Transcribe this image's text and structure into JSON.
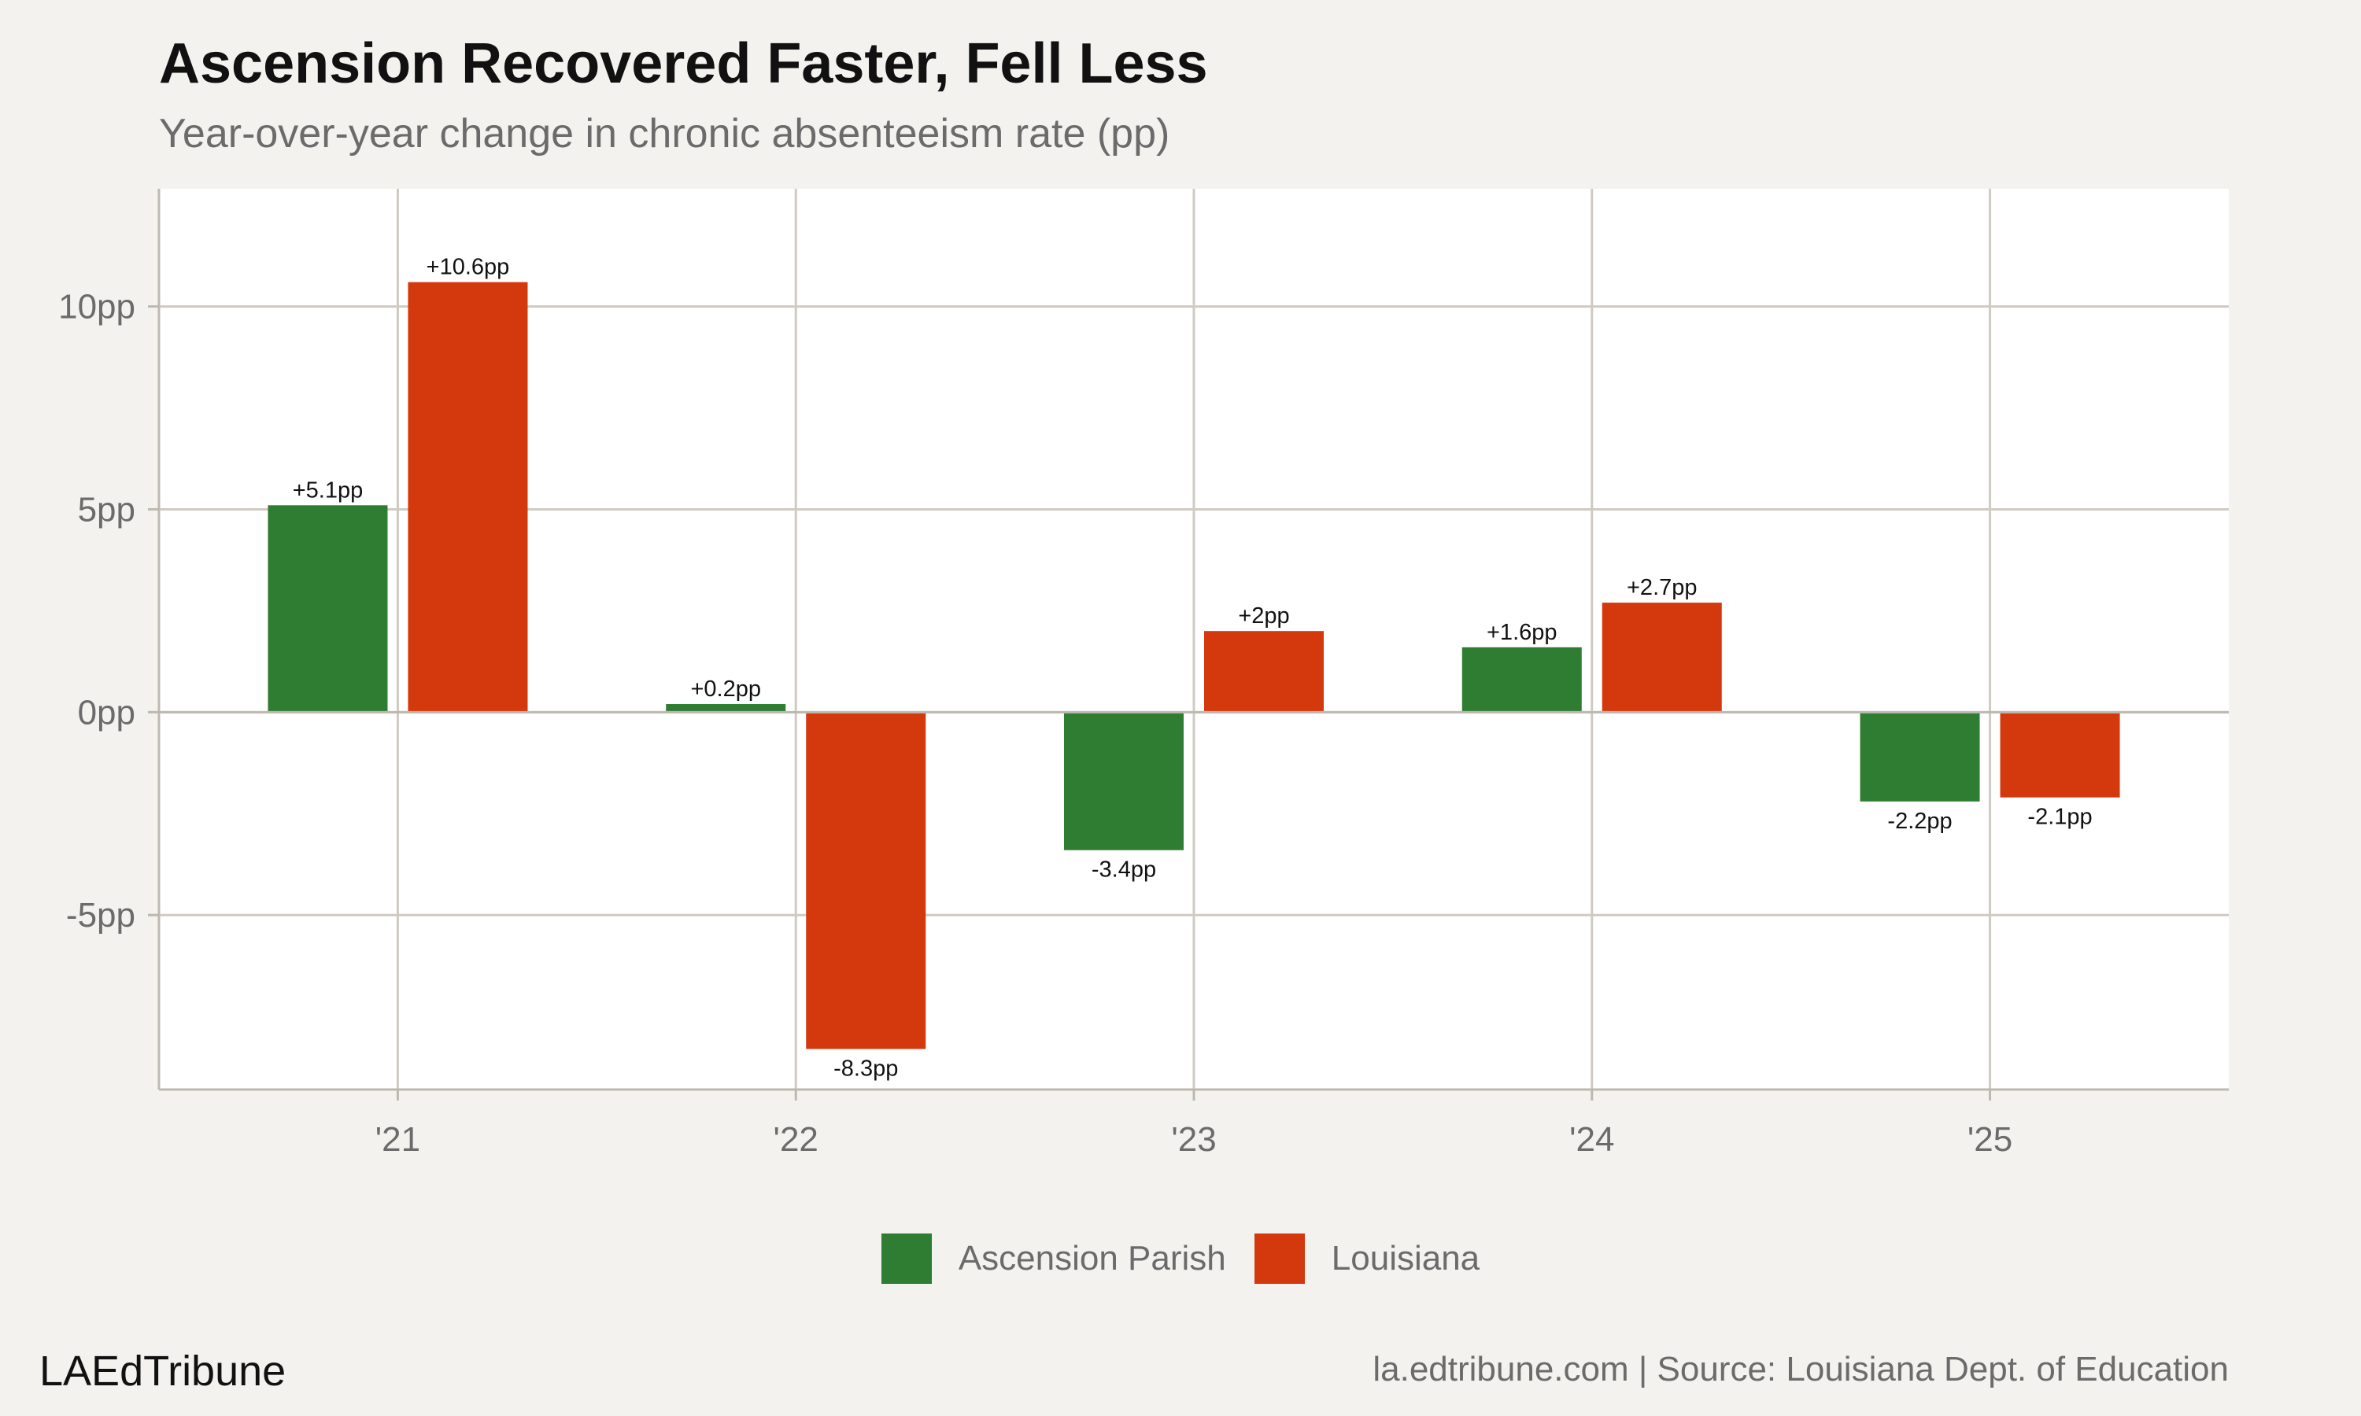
{
  "header": {
    "title": "Ascension Recovered Faster, Fell Less",
    "subtitle": "Year-over-year change in chronic absenteeism rate (pp)"
  },
  "footer": {
    "brand": "LAEdTribune",
    "source": "la.edtribune.com | Source: Louisiana Dept. of Education"
  },
  "colors": {
    "panel": "#ffffff",
    "grid": "#cfcbc3",
    "ascension": "#2e7d32",
    "louisiana": "#d4380d"
  },
  "chart_data": {
    "type": "bar",
    "title": "Ascension Recovered Faster, Fell Less",
    "subtitle": "Year-over-year change in chronic absenteeism rate (pp)",
    "categories": [
      "'21",
      "'22",
      "'23",
      "'24",
      "'25"
    ],
    "series": [
      {
        "name": "Ascension Parish",
        "color": "#2e7d32",
        "values": [
          5.1,
          0.2,
          -3.4,
          1.6,
          -2.2
        ],
        "labels": [
          "+5.1pp",
          "+0.2pp",
          "-3.4pp",
          "+1.6pp",
          "-2.2pp"
        ]
      },
      {
        "name": "Louisiana",
        "color": "#d4380d",
        "values": [
          10.6,
          -8.3,
          2.0,
          2.7,
          -2.1
        ],
        "labels": [
          "+10.6pp",
          "-8.3pp",
          "+2pp",
          "+2.7pp",
          "-2.1pp"
        ]
      }
    ],
    "ylim": [
      -9.3,
      12.9
    ],
    "yticks": [
      -5,
      0,
      5,
      10
    ],
    "ytick_labels": [
      "-5pp",
      "0pp",
      "5pp",
      "10pp"
    ],
    "grid": true,
    "legend_position": "bottom"
  }
}
